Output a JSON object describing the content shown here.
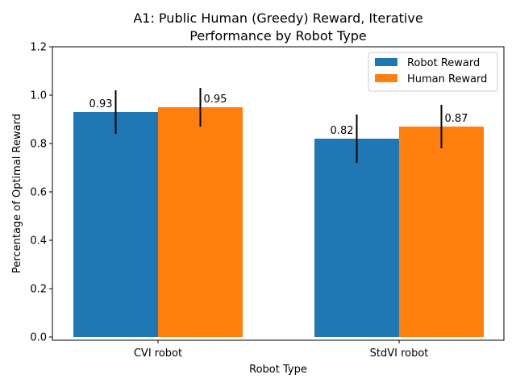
{
  "chart_data": {
    "type": "bar",
    "title_lines": [
      "A1: Public Human (Greedy) Reward, Iterative",
      "Performance by Robot Type"
    ],
    "xlabel": "Robot Type",
    "ylabel": "Percentage of Optimal Reward",
    "categories": [
      "CVI robot",
      "StdVI robot"
    ],
    "ylim": [
      0,
      1.2
    ],
    "yticks": [
      "0.0",
      "0.2",
      "0.4",
      "0.6",
      "0.8",
      "1.0",
      "1.2"
    ],
    "series": [
      {
        "name": "Robot Reward",
        "color": "#1f77b4",
        "values": [
          0.93,
          0.82
        ],
        "labels": [
          "0.93",
          "0.82"
        ],
        "error": [
          0.09,
          0.1
        ]
      },
      {
        "name": "Human Reward",
        "color": "#ff7f0e",
        "values": [
          0.95,
          0.87
        ],
        "labels": [
          "0.95",
          "0.87"
        ],
        "error": [
          0.08,
          0.09
        ]
      }
    ],
    "legend_position": "top-right",
    "grid": false
  }
}
